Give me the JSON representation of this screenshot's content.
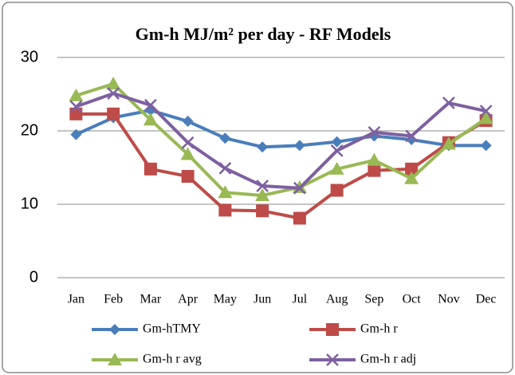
{
  "chart_data": {
    "type": "line",
    "title": "Gm-h MJ/m² per day - RF Models",
    "categories": [
      "Jan",
      "Feb",
      "Mar",
      "Apr",
      "May",
      "Jun",
      "Jul",
      "Aug",
      "Sep",
      "Oct",
      "Nov",
      "Dec"
    ],
    "ylim": [
      0,
      30
    ],
    "yticks": [
      0,
      10,
      20,
      30
    ],
    "grid": true,
    "legend": "bottom",
    "series": [
      {
        "name": "Gm-hTMY",
        "color": "#4a7ebb",
        "marker": "diamond",
        "values": [
          19.5,
          21.8,
          22.8,
          21.3,
          19.0,
          17.8,
          18.0,
          18.5,
          19.3,
          18.8,
          18.0,
          18.0
        ]
      },
      {
        "name": "Gm-h r",
        "color": "#be4b48",
        "marker": "square",
        "values": [
          22.3,
          22.3,
          14.8,
          13.8,
          9.2,
          9.1,
          8.1,
          11.9,
          14.6,
          14.8,
          18.4,
          21.4
        ]
      },
      {
        "name": "Gm-h r avg",
        "color": "#98b954",
        "marker": "triangle",
        "values": [
          24.8,
          26.4,
          21.5,
          16.8,
          11.6,
          11.2,
          12.3,
          14.8,
          16.0,
          13.5,
          18.2,
          21.7
        ]
      },
      {
        "name": "Gm-h r adj",
        "color": "#7d60a0",
        "marker": "x",
        "values": [
          23.3,
          25.1,
          23.5,
          18.4,
          14.9,
          12.5,
          12.2,
          17.3,
          19.8,
          19.3,
          23.8,
          22.7
        ]
      }
    ]
  }
}
